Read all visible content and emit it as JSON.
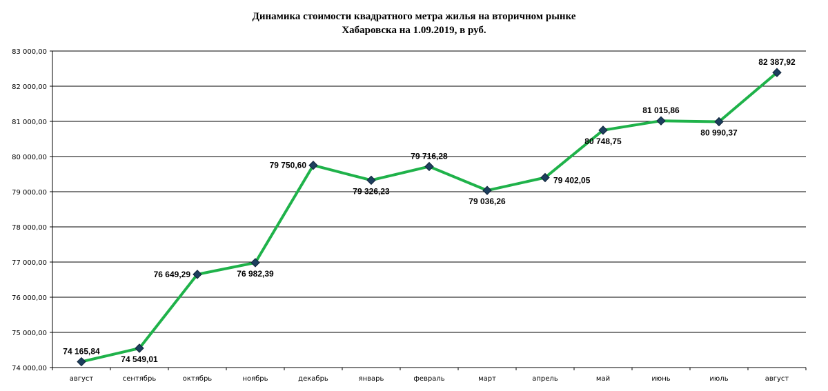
{
  "chart_data": {
    "type": "line",
    "title_line1": "Динамика стоимости квадратного метра жилья на вторичном рынке",
    "title_line2": "Хабаровска на 1.09.2019, в руб.",
    "categories": [
      "август",
      "сентябрь",
      "октябрь",
      "ноябрь",
      "декабрь",
      "январь",
      "февраль",
      "март",
      "апрель",
      "май",
      "июнь",
      "июль",
      "август"
    ],
    "series": [
      {
        "values": [
          74165.84,
          74549.01,
          76649.29,
          76982.39,
          79750.6,
          79326.23,
          79716.28,
          79036.26,
          79402.05,
          80748.75,
          81015.86,
          80990.37,
          82387.92
        ],
        "labels": [
          "74 165,84",
          "74 549,01",
          "76 649,29",
          "76 982,39",
          "79 750,60",
          "79 326,23",
          "79 716,28",
          "79 036,26",
          "79 402,05",
          "80 748,75",
          "81 015,86",
          "80 990,37",
          "82 387,92"
        ],
        "label_positions": [
          "above",
          "below",
          "left",
          "below",
          "left",
          "below",
          "above",
          "below",
          "right",
          "below",
          "above",
          "below",
          "above"
        ],
        "color": "#1fb24a",
        "marker_color": "#1d3f5e"
      }
    ],
    "ylim": [
      74000,
      83000
    ],
    "yticks": [
      74000,
      75000,
      76000,
      77000,
      78000,
      79000,
      80000,
      81000,
      82000,
      83000
    ],
    "ytick_labels": [
      "74 000,00",
      "75 000,00",
      "76 000,00",
      "77 000,00",
      "78 000,00",
      "79 000,00",
      "80 000,00",
      "81 000,00",
      "82 000,00",
      "83 000,00"
    ],
    "grid": true,
    "legend": false
  }
}
